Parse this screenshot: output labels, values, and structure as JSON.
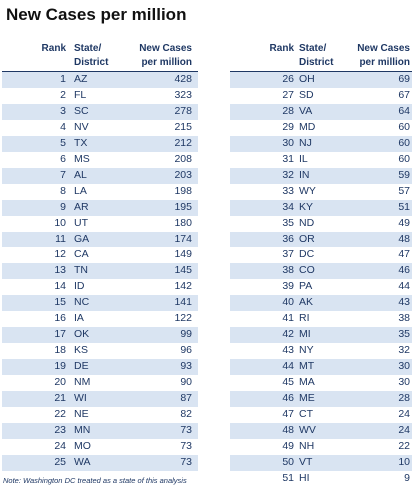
{
  "title": "New Cases per million",
  "note": "Note: Washington DC treated as a state of this analysis",
  "headers": {
    "rank": "Rank",
    "state_line1": "State/",
    "state_line2": "District",
    "value_line1": "New Cases",
    "value_line2": "per million"
  },
  "chart_data": {
    "type": "table",
    "title": "New Cases per million",
    "columns": [
      "Rank",
      "State/ District",
      "New Cases per million"
    ],
    "rows": [
      {
        "rank": "1",
        "state": "AZ",
        "value": "428"
      },
      {
        "rank": "2",
        "state": "FL",
        "value": "323"
      },
      {
        "rank": "3",
        "state": "SC",
        "value": "278"
      },
      {
        "rank": "4",
        "state": "NV",
        "value": "215"
      },
      {
        "rank": "5",
        "state": "TX",
        "value": "212"
      },
      {
        "rank": "6",
        "state": "MS",
        "value": "208"
      },
      {
        "rank": "7",
        "state": "AL",
        "value": "203"
      },
      {
        "rank": "8",
        "state": "LA",
        "value": "198"
      },
      {
        "rank": "9",
        "state": "AR",
        "value": "195"
      },
      {
        "rank": "10",
        "state": "UT",
        "value": "180"
      },
      {
        "rank": "11",
        "state": "GA",
        "value": "174"
      },
      {
        "rank": "12",
        "state": "CA",
        "value": "149"
      },
      {
        "rank": "13",
        "state": "TN",
        "value": "145"
      },
      {
        "rank": "14",
        "state": "ID",
        "value": "142"
      },
      {
        "rank": "15",
        "state": "NC",
        "value": "141"
      },
      {
        "rank": "16",
        "state": "IA",
        "value": "122"
      },
      {
        "rank": "17",
        "state": "OK",
        "value": "99"
      },
      {
        "rank": "18",
        "state": "KS",
        "value": "96"
      },
      {
        "rank": "19",
        "state": "DE",
        "value": "93"
      },
      {
        "rank": "20",
        "state": "NM",
        "value": "90"
      },
      {
        "rank": "21",
        "state": "WI",
        "value": "87"
      },
      {
        "rank": "22",
        "state": "NE",
        "value": "82"
      },
      {
        "rank": "23",
        "state": "MN",
        "value": "73"
      },
      {
        "rank": "24",
        "state": "MO",
        "value": "73"
      },
      {
        "rank": "25",
        "state": "WA",
        "value": "73"
      },
      {
        "rank": "26",
        "state": "OH",
        "value": "69"
      },
      {
        "rank": "27",
        "state": "SD",
        "value": "67"
      },
      {
        "rank": "28",
        "state": "VA",
        "value": "64"
      },
      {
        "rank": "29",
        "state": "MD",
        "value": "60"
      },
      {
        "rank": "30",
        "state": "NJ",
        "value": "60"
      },
      {
        "rank": "31",
        "state": "IL",
        "value": "60"
      },
      {
        "rank": "32",
        "state": "IN",
        "value": "59"
      },
      {
        "rank": "33",
        "state": "WY",
        "value": "57"
      },
      {
        "rank": "34",
        "state": "KY",
        "value": "51"
      },
      {
        "rank": "35",
        "state": "ND",
        "value": "49"
      },
      {
        "rank": "36",
        "state": "OR",
        "value": "48"
      },
      {
        "rank": "37",
        "state": "DC",
        "value": "47"
      },
      {
        "rank": "38",
        "state": "CO",
        "value": "46"
      },
      {
        "rank": "39",
        "state": "PA",
        "value": "44"
      },
      {
        "rank": "40",
        "state": "AK",
        "value": "43"
      },
      {
        "rank": "41",
        "state": "RI",
        "value": "38"
      },
      {
        "rank": "42",
        "state": "MI",
        "value": "35"
      },
      {
        "rank": "43",
        "state": "NY",
        "value": "32"
      },
      {
        "rank": "44",
        "state": "MT",
        "value": "30"
      },
      {
        "rank": "45",
        "state": "MA",
        "value": "30"
      },
      {
        "rank": "46",
        "state": "ME",
        "value": "28"
      },
      {
        "rank": "47",
        "state": "CT",
        "value": "24"
      },
      {
        "rank": "48",
        "state": "WV",
        "value": "24"
      },
      {
        "rank": "49",
        "state": "NH",
        "value": "22"
      },
      {
        "rank": "50",
        "state": "VT",
        "value": "10"
      },
      {
        "rank": "51",
        "state": "HI",
        "value": "9"
      }
    ]
  },
  "colors": {
    "text": "#1f3864",
    "band": "#d9e4f2",
    "title": "#111111"
  }
}
